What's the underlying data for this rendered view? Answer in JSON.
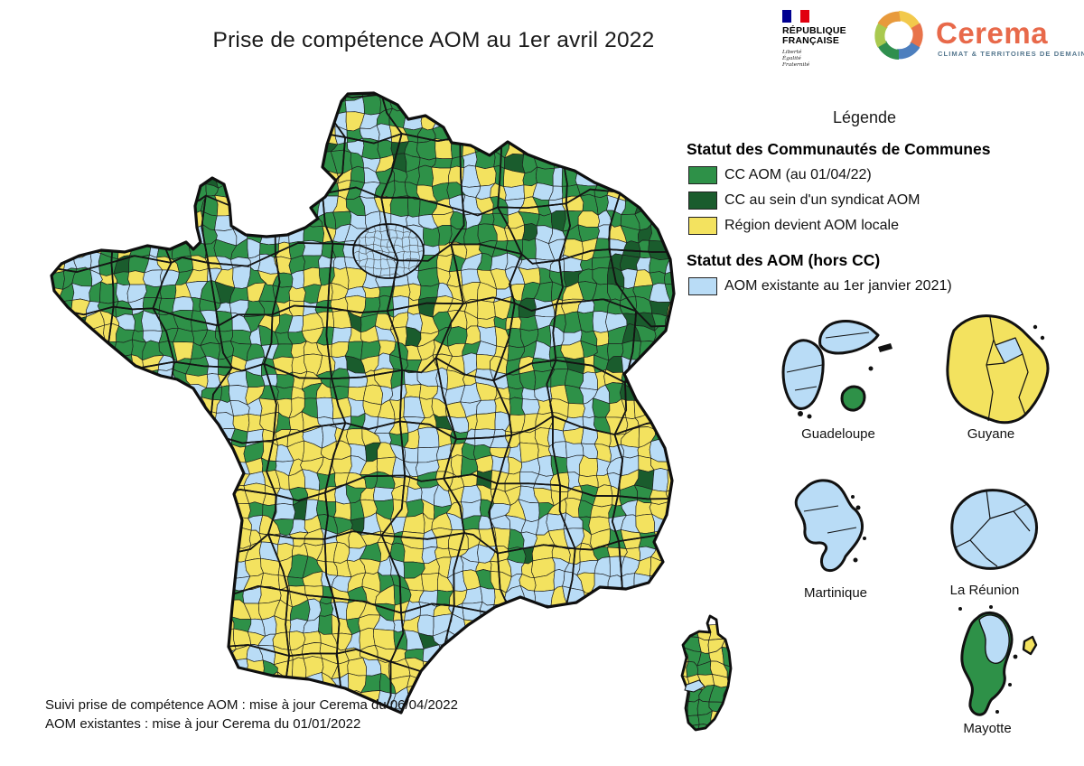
{
  "title": "Prise de compétence AOM au 1er avril 2022",
  "header": {
    "gov_logo": {
      "line1": "RÉPUBLIQUE",
      "line2": "FRANÇAISE",
      "motto_line1": "Liberté",
      "motto_line2": "Égalité",
      "motto_line3": "Fraternité"
    },
    "cerema_logo": {
      "name": "Cerema",
      "tagline": "CLIMAT & TERRITOIRES DE DEMAIN",
      "name_color": "#e8694a",
      "tagline_color": "#56788f"
    }
  },
  "legend": {
    "title": "Légende",
    "sections": [
      {
        "heading": "Statut des Communautés de Communes",
        "items": [
          {
            "label": "CC AOM (au 01/04/22)",
            "color": "#2e9148"
          },
          {
            "label": "CC au sein d'un syndicat AOM",
            "color": "#1a5c2d"
          },
          {
            "label": "Région devient AOM locale",
            "color": "#f3e25f"
          }
        ]
      },
      {
        "heading": "Statut des AOM (hors CC)",
        "items": [
          {
            "label": "AOM existante au 1er janvier 2021)",
            "color": "#b9dcf6"
          }
        ]
      }
    ]
  },
  "territories": [
    {
      "name": "Guadeloupe"
    },
    {
      "name": "Guyane"
    },
    {
      "name": "Martinique"
    },
    {
      "name": "La Réunion"
    },
    {
      "name": "Mayotte"
    }
  ],
  "footer": {
    "line1": "Suivi prise de compétence AOM : mise à jour Cerema du 06/04/2022",
    "line2": "AOM existantes : mise à jour Cerema du 01/01/2022"
  },
  "map": {
    "palette": {
      "green": "#2e9148",
      "dark_green": "#1a5c2d",
      "yellow": "#f3e25f",
      "blue": "#b9dcf6",
      "border": "#111111"
    }
  }
}
